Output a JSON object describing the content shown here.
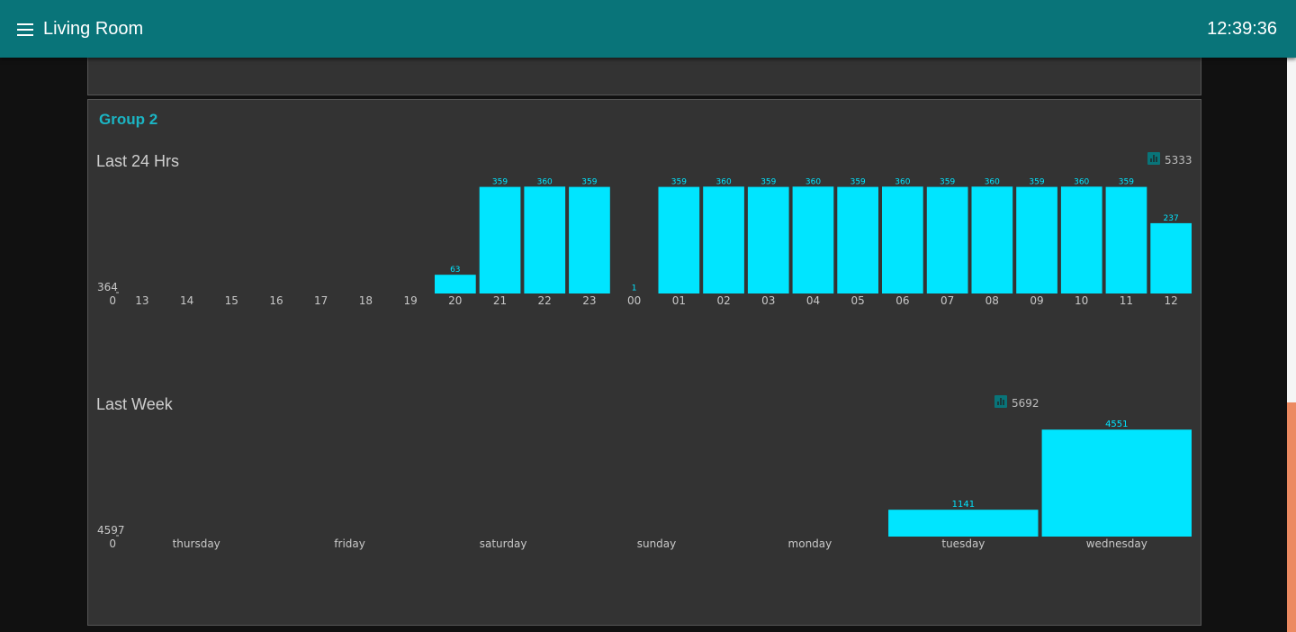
{
  "header": {
    "title": "Living Room",
    "clock": "12:39:36"
  },
  "group": {
    "title": "Group 2"
  },
  "colors": {
    "bar": "#00e5ff",
    "accent": "#097479",
    "panel": "#333333",
    "axis_text": "#c8c8c8"
  },
  "widgets": [
    {
      "title": "Last 24 Hrs",
      "total": "5333",
      "total_icon": "bar-chart-icon"
    },
    {
      "title": "Last Week",
      "total": "5692",
      "total_icon": "bar-chart-icon"
    }
  ],
  "chart_data": [
    {
      "type": "bar",
      "title": "Last 24 Hrs",
      "categories": [
        "13",
        "14",
        "15",
        "16",
        "17",
        "18",
        "19",
        "20",
        "21",
        "22",
        "23",
        "00",
        "01",
        "02",
        "03",
        "04",
        "05",
        "06",
        "07",
        "08",
        "09",
        "10",
        "11",
        "12"
      ],
      "values": [
        0,
        0,
        0,
        0,
        0,
        0,
        0,
        63,
        359,
        360,
        359,
        1,
        359,
        360,
        359,
        360,
        359,
        360,
        359,
        360,
        359,
        360,
        359,
        237
      ],
      "data_labels": [
        "",
        "",
        "",
        "",
        "",
        "",
        "",
        "63",
        "359",
        "360",
        "359",
        "1",
        "359",
        "360",
        "359",
        "360",
        "359",
        "360",
        "359",
        "360",
        "359",
        "360",
        "359",
        "237"
      ],
      "y_tick_labels": [
        "364",
        "0"
      ],
      "ylim": [
        0,
        364
      ],
      "grid": false,
      "legend": false
    },
    {
      "type": "bar",
      "title": "Last Week",
      "categories": [
        "thursday",
        "friday",
        "saturday",
        "sunday",
        "monday",
        "tuesday",
        "wednesday"
      ],
      "values": [
        0,
        0,
        0,
        0,
        0,
        1141,
        4551
      ],
      "data_labels": [
        "",
        "",
        "",
        "",
        "",
        "1141",
        "4551"
      ],
      "y_tick_labels": [
        "4597",
        "0"
      ],
      "ylim": [
        0,
        4597
      ],
      "grid": false,
      "legend": false
    }
  ]
}
